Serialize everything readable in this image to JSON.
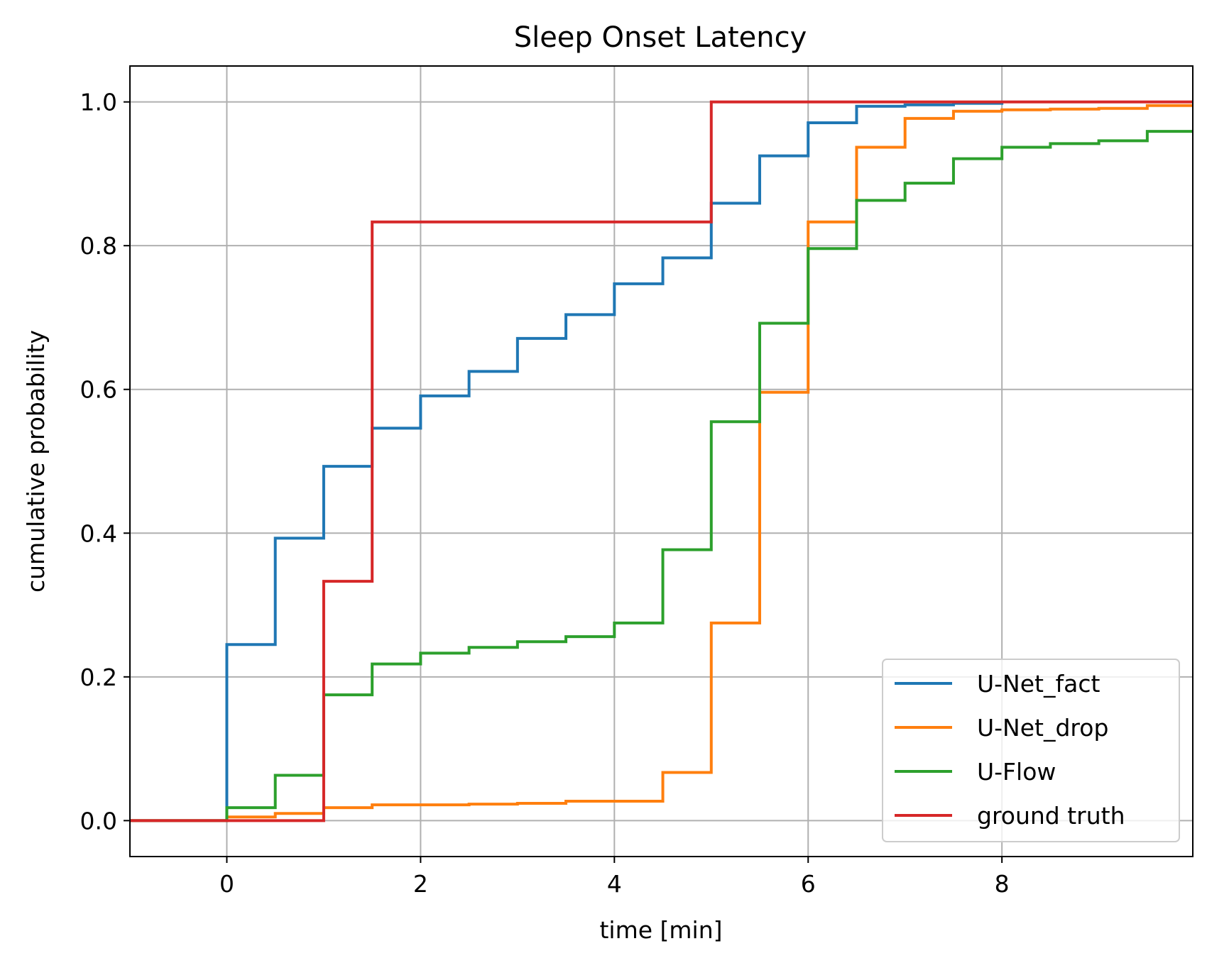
{
  "chart_data": {
    "type": "line",
    "step": true,
    "title": "Sleep Onset Latency",
    "xlabel": "time [min]",
    "ylabel": "cumulative probability",
    "xlim": [
      -1,
      9.97
    ],
    "ylim": [
      -0.05,
      1.05
    ],
    "xticks": [
      0,
      2,
      4,
      6,
      8
    ],
    "xtick_labels": [
      "0",
      "2",
      "4",
      "6",
      "8"
    ],
    "yticks": [
      0.0,
      0.2,
      0.4,
      0.6,
      0.8,
      1.0
    ],
    "ytick_labels": [
      "0.0",
      "0.2",
      "0.4",
      "0.6",
      "0.8",
      "1.0"
    ],
    "grid": true,
    "legend_position": "lower-right",
    "series": [
      {
        "name": "U-Net_fact",
        "color": "#1f77b4",
        "x": [
          -1,
          0,
          0.5,
          1,
          1.5,
          2,
          2.5,
          3,
          3.5,
          4,
          4.5,
          5,
          5.5,
          6,
          6.5,
          7,
          7.5,
          8
        ],
        "y": [
          0,
          0.245,
          0.393,
          0.493,
          0.546,
          0.591,
          0.625,
          0.671,
          0.704,
          0.747,
          0.783,
          0.859,
          0.925,
          0.971,
          0.994,
          0.996,
          0.998,
          1.0
        ]
      },
      {
        "name": "U-Net_drop",
        "color": "#ff7f0e",
        "x": [
          -1,
          0,
          0.5,
          1,
          1.5,
          2,
          2.5,
          3,
          3.5,
          4,
          4.5,
          5,
          5.5,
          6,
          6.5,
          7,
          7.5,
          8,
          8.5,
          9,
          9.5,
          9.97
        ],
        "y": [
          0,
          0.005,
          0.01,
          0.018,
          0.022,
          0.022,
          0.023,
          0.024,
          0.027,
          0.027,
          0.067,
          0.275,
          0.596,
          0.833,
          0.937,
          0.977,
          0.987,
          0.989,
          0.99,
          0.991,
          0.995,
          0.995
        ]
      },
      {
        "name": "U-Flow",
        "color": "#2ca02c",
        "x": [
          -1,
          0,
          0.5,
          1,
          1.5,
          2,
          2.5,
          3,
          3.5,
          4,
          4.5,
          5,
          5.5,
          6,
          6.5,
          7,
          7.5,
          8,
          8.5,
          9,
          9.5,
          9.97
        ],
        "y": [
          0,
          0.018,
          0.063,
          0.175,
          0.218,
          0.233,
          0.241,
          0.249,
          0.256,
          0.275,
          0.377,
          0.555,
          0.692,
          0.796,
          0.863,
          0.887,
          0.921,
          0.937,
          0.942,
          0.946,
          0.959,
          0.959
        ]
      },
      {
        "name": "ground truth",
        "color": "#d62728",
        "x": [
          -1,
          1,
          1.5,
          5,
          9.97
        ],
        "y": [
          0,
          0.333,
          0.833,
          1.0,
          1.0
        ]
      }
    ]
  }
}
